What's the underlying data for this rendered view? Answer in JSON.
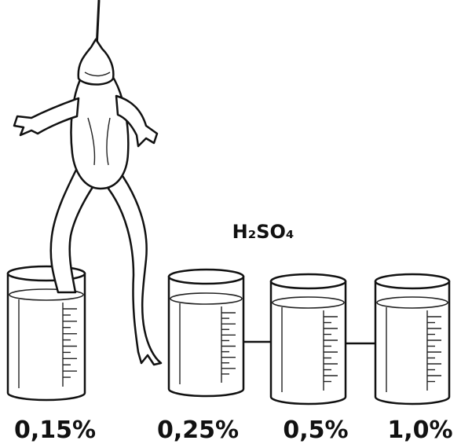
{
  "formula": "H₂SO₄",
  "beakers": [
    {
      "label": "0,15%"
    },
    {
      "label": "0,25%"
    },
    {
      "label": "0,5%"
    },
    {
      "label": "1,0%"
    }
  ]
}
